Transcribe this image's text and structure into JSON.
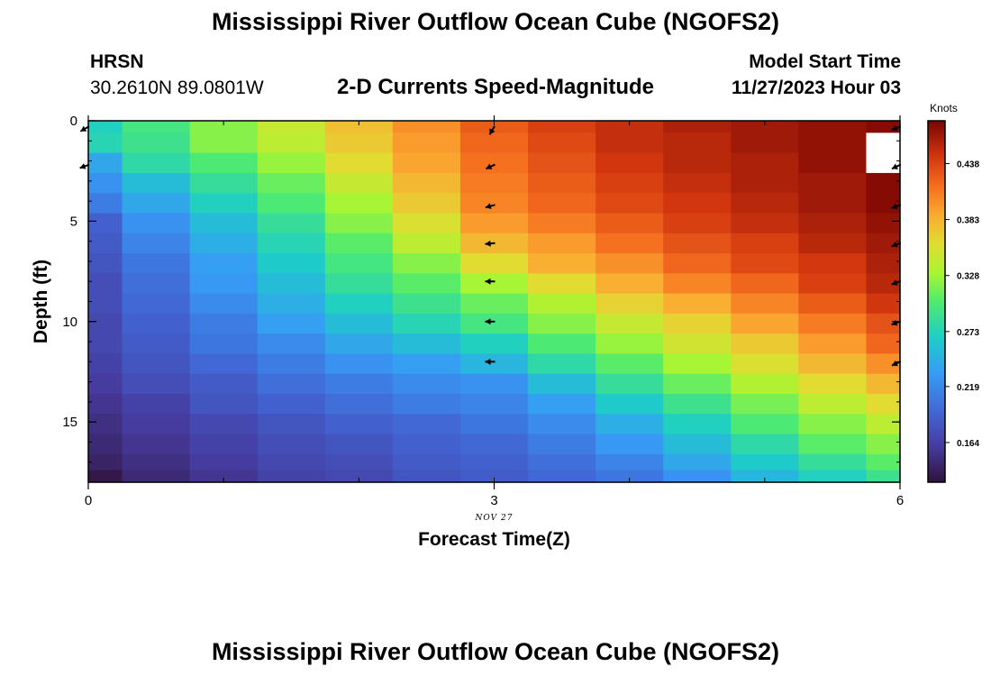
{
  "header": {
    "title": "Mississippi River Outflow Ocean Cube (NGOFS2)",
    "station": "HRSN",
    "coords": "30.2610N  89.0801W",
    "subtitle": "2-D Currents Speed-Magnitude",
    "model_start_label": "Model Start Time",
    "model_start_value": "11/27/2023 Hour 03",
    "footer_title": "Mississippi River Outflow Ocean Cube (NGOFS2)"
  },
  "chart_data": {
    "type": "heatmap",
    "xlabel": "Forecast Time(Z)",
    "ylabel": "Depth (ft)",
    "date_label": "NOV 27",
    "colorbar_unit": "Knots",
    "xlim": [
      0,
      6
    ],
    "ylim": [
      0,
      18
    ],
    "x_ticks": [
      0,
      3,
      6
    ],
    "y_ticks": [
      0,
      5,
      10,
      15
    ],
    "colorbar_ticks": [
      0.164,
      0.219,
      0.273,
      0.328,
      0.383,
      0.438
    ],
    "colorbar_range": [
      0.125,
      0.48
    ],
    "x_edges": [
      0,
      0.25,
      0.75,
      1.25,
      1.75,
      2.25,
      2.75,
      3.25,
      3.75,
      4.25,
      4.75,
      5.25,
      5.75,
      6
    ],
    "y_edges": [
      0,
      0.6,
      1.6,
      2.6,
      3.6,
      4.6,
      5.6,
      6.6,
      7.6,
      8.6,
      9.6,
      10.6,
      11.6,
      12.6,
      13.6,
      14.6,
      15.6,
      16.6,
      17.4,
      18
    ],
    "speed": [
      [
        0.27,
        0.295,
        0.32,
        0.345,
        0.375,
        0.4,
        0.425,
        0.44,
        0.45,
        0.46,
        0.465,
        0.47,
        0.475
      ],
      [
        0.275,
        0.29,
        0.32,
        0.34,
        0.37,
        0.395,
        0.42,
        0.435,
        0.45,
        0.455,
        0.465,
        0.47,
        null
      ],
      [
        0.24,
        0.28,
        0.3,
        0.325,
        0.36,
        0.39,
        0.415,
        0.43,
        0.445,
        0.455,
        0.46,
        0.47,
        null
      ],
      [
        0.225,
        0.255,
        0.285,
        0.31,
        0.345,
        0.38,
        0.41,
        0.425,
        0.44,
        0.45,
        0.46,
        0.465,
        0.475
      ],
      [
        0.21,
        0.24,
        0.27,
        0.3,
        0.33,
        0.37,
        0.405,
        0.42,
        0.435,
        0.445,
        0.455,
        0.465,
        0.475
      ],
      [
        0.19,
        0.225,
        0.255,
        0.285,
        0.32,
        0.355,
        0.395,
        0.41,
        0.425,
        0.44,
        0.45,
        0.46,
        0.47
      ],
      [
        0.185,
        0.215,
        0.245,
        0.275,
        0.305,
        0.34,
        0.38,
        0.395,
        0.415,
        0.43,
        0.44,
        0.455,
        0.465
      ],
      [
        0.18,
        0.205,
        0.235,
        0.265,
        0.295,
        0.32,
        0.36,
        0.385,
        0.4,
        0.42,
        0.435,
        0.445,
        0.46
      ],
      [
        0.175,
        0.2,
        0.23,
        0.255,
        0.285,
        0.305,
        0.33,
        0.36,
        0.385,
        0.405,
        0.42,
        0.44,
        0.455
      ],
      [
        0.175,
        0.195,
        0.22,
        0.245,
        0.27,
        0.29,
        0.31,
        0.335,
        0.365,
        0.385,
        0.405,
        0.425,
        0.445
      ],
      [
        0.17,
        0.19,
        0.21,
        0.235,
        0.255,
        0.275,
        0.295,
        0.32,
        0.345,
        0.365,
        0.39,
        0.41,
        0.43
      ],
      [
        0.17,
        0.185,
        0.205,
        0.22,
        0.24,
        0.255,
        0.27,
        0.3,
        0.325,
        0.35,
        0.37,
        0.395,
        0.42
      ],
      [
        0.165,
        0.18,
        0.195,
        0.21,
        0.225,
        0.235,
        0.25,
        0.28,
        0.305,
        0.33,
        0.355,
        0.38,
        0.4
      ],
      [
        0.16,
        0.175,
        0.185,
        0.2,
        0.21,
        0.22,
        0.225,
        0.255,
        0.285,
        0.31,
        0.335,
        0.36,
        0.38
      ],
      [
        0.155,
        0.165,
        0.18,
        0.19,
        0.2,
        0.21,
        0.215,
        0.235,
        0.265,
        0.29,
        0.315,
        0.34,
        0.36
      ],
      [
        0.15,
        0.16,
        0.17,
        0.18,
        0.19,
        0.195,
        0.205,
        0.22,
        0.245,
        0.27,
        0.3,
        0.32,
        0.34
      ],
      [
        0.145,
        0.155,
        0.165,
        0.175,
        0.18,
        0.19,
        0.195,
        0.21,
        0.23,
        0.255,
        0.28,
        0.305,
        0.32
      ],
      [
        0.14,
        0.15,
        0.16,
        0.17,
        0.175,
        0.185,
        0.19,
        0.2,
        0.215,
        0.24,
        0.265,
        0.285,
        0.305
      ],
      [
        0.13,
        0.145,
        0.155,
        0.165,
        0.17,
        0.18,
        0.185,
        0.195,
        0.205,
        0.225,
        0.25,
        0.27,
        0.29
      ]
    ],
    "vectors": [
      {
        "x": 0,
        "depth": 0.3,
        "angle": 210
      },
      {
        "x": 0,
        "depth": 2.2,
        "angle": 200
      },
      {
        "x": 3,
        "depth": 0.3,
        "angle": 240
      },
      {
        "x": 3,
        "depth": 2.2,
        "angle": 205
      },
      {
        "x": 3,
        "depth": 4.2,
        "angle": 195
      },
      {
        "x": 3,
        "depth": 6.1,
        "angle": 185
      },
      {
        "x": 3,
        "depth": 8.0,
        "angle": 180
      },
      {
        "x": 3,
        "depth": 10.0,
        "angle": 180
      },
      {
        "x": 3,
        "depth": 12.0,
        "angle": 180
      },
      {
        "x": 6,
        "depth": 0.3,
        "angle": 200
      },
      {
        "x": 6,
        "depth": 2.2,
        "angle": 205
      },
      {
        "x": 6,
        "depth": 4.2,
        "angle": 200
      },
      {
        "x": 6,
        "depth": 6.1,
        "angle": 200
      },
      {
        "x": 6,
        "depth": 8.0,
        "angle": 200
      },
      {
        "x": 6,
        "depth": 10.0,
        "angle": 200
      },
      {
        "x": 6,
        "depth": 12.0,
        "angle": 205
      }
    ]
  }
}
